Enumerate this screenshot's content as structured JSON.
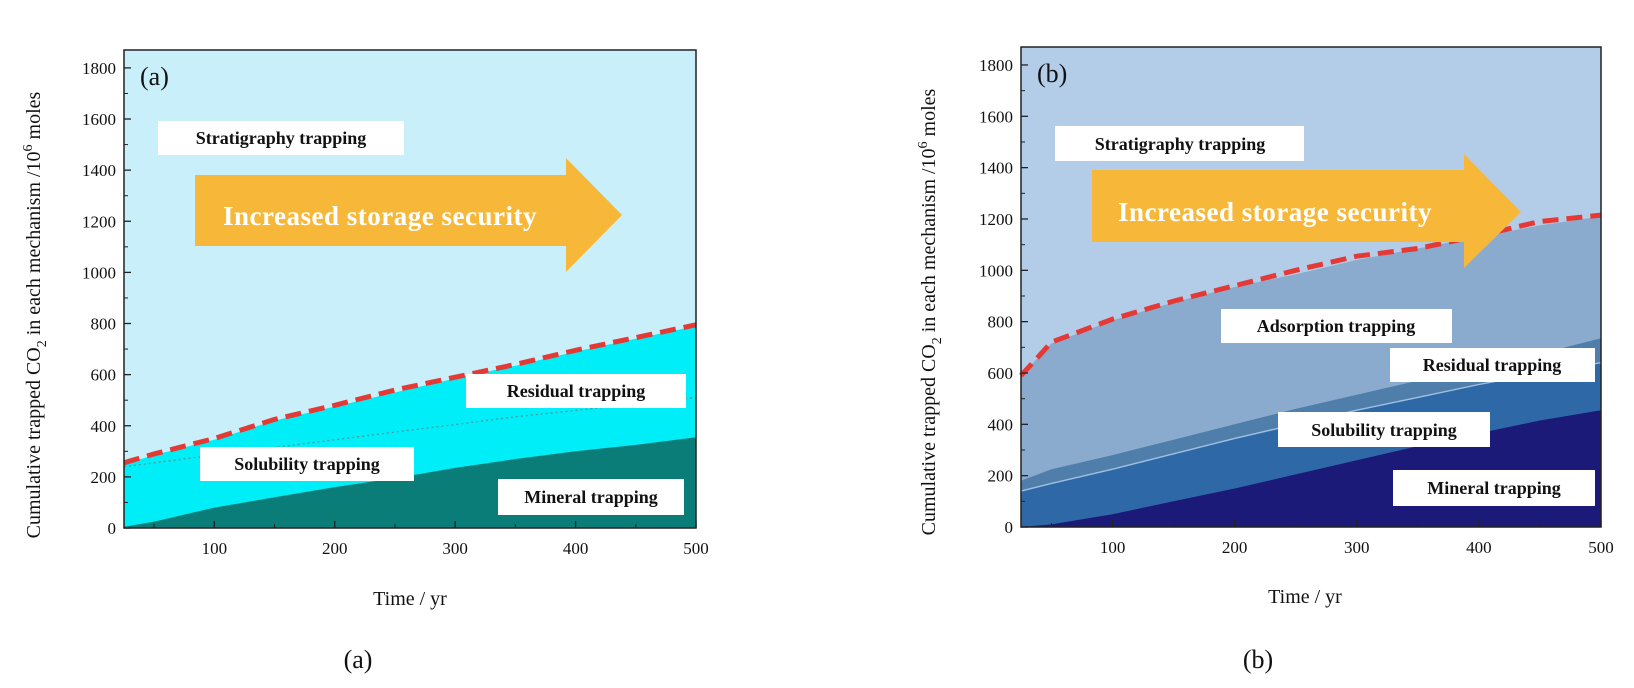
{
  "chart_data": [
    {
      "panel": "(a)",
      "type": "area",
      "caption": "(a)",
      "xlabel": "Time / yr",
      "ylabel_main": "Cumulative trapped CO",
      "ylabel_sub": "2",
      "ylabel_mid": " in each mechanism /10",
      "ylabel_sup": "6",
      "ylabel_end": " moles",
      "xlim": [
        25,
        500
      ],
      "ylim": [
        0,
        1870
      ],
      "xticks": [
        100,
        200,
        300,
        400,
        500
      ],
      "yticks": [
        0,
        200,
        400,
        600,
        800,
        1000,
        1200,
        1400,
        1600,
        1800
      ],
      "arrow_text": "Increased storage security",
      "colors": {
        "background": "#c9effa",
        "stratigraphy": "#c9effa",
        "residual": "#00eef7",
        "solubility": "#00eef7",
        "mineral": "#0a7d78",
        "dashed": "#e53935",
        "arrow": "#f7b83a"
      },
      "x": [
        25,
        50,
        100,
        150,
        200,
        250,
        300,
        350,
        400,
        450,
        500
      ],
      "series": [
        {
          "name": "Mineral trapping",
          "values": [
            5,
            25,
            80,
            120,
            160,
            195,
            235,
            270,
            300,
            325,
            355
          ]
        },
        {
          "name": "Solubility trapping",
          "values": [
            240,
            255,
            285,
            315,
            345,
            375,
            405,
            435,
            460,
            485,
            510
          ]
        },
        {
          "name": "Residual trapping",
          "values": [
            250,
            285,
            345,
            420,
            475,
            530,
            585,
            635,
            690,
            740,
            790
          ]
        }
      ],
      "dashed_boundary": [
        255,
        290,
        350,
        425,
        480,
        540,
        590,
        640,
        695,
        745,
        795
      ],
      "labels": [
        "Stratigraphy trapping",
        "Residual trapping",
        "Solubility trapping",
        "Mineral trapping"
      ]
    },
    {
      "panel": "(b)",
      "type": "area",
      "caption": "(b)",
      "xlabel": "Time / yr",
      "ylabel_main": "Cumulative trapped CO",
      "ylabel_sub": "2",
      "ylabel_mid": " in each mechanism /10",
      "ylabel_sup": "6",
      "ylabel_end": " moles",
      "xlim": [
        25,
        500
      ],
      "ylim": [
        0,
        1870
      ],
      "xticks": [
        100,
        200,
        300,
        400,
        500
      ],
      "yticks": [
        0,
        200,
        400,
        600,
        800,
        1000,
        1200,
        1400,
        1600,
        1800
      ],
      "arrow_text": "Increased storage security",
      "colors": {
        "background": "#b3cde9",
        "stratigraphy": "#b3cde9",
        "adsorption": "#8aabcd",
        "residual": "#4f7eab",
        "solubility": "#2f68a6",
        "mineral": "#1b1a78",
        "dashed": "#e53935",
        "arrow": "#f7b83a"
      },
      "x": [
        25,
        50,
        100,
        150,
        200,
        250,
        300,
        350,
        400,
        450,
        500
      ],
      "series": [
        {
          "name": "Mineral trapping",
          "values": [
            0,
            10,
            50,
            100,
            150,
            205,
            260,
            315,
            365,
            415,
            455
          ]
        },
        {
          "name": "Solubility trapping",
          "values": [
            140,
            170,
            225,
            285,
            345,
            400,
            455,
            505,
            555,
            600,
            640
          ]
        },
        {
          "name": "Residual trapping",
          "values": [
            180,
            225,
            280,
            340,
            400,
            460,
            515,
            570,
            620,
            675,
            735
          ]
        },
        {
          "name": "Adsorption trapping",
          "values": [
            590,
            715,
            805,
            875,
            935,
            985,
            1040,
            1085,
            1130,
            1175,
            1210
          ]
        }
      ],
      "dashed_boundary": [
        590,
        720,
        810,
        880,
        940,
        1000,
        1055,
        1085,
        1135,
        1190,
        1215
      ],
      "labels": [
        "Stratigraphy trapping",
        "Adsorption trapping",
        "Residual trapping",
        "Solubility trapping",
        "Mineral trapping"
      ]
    }
  ]
}
